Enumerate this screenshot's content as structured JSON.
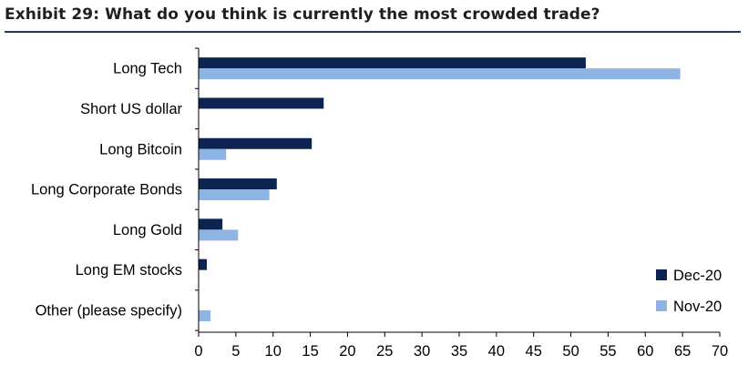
{
  "header": {
    "title": "Exhibit 29: What do you think is currently the most crowded trade?"
  },
  "chart_data": {
    "type": "bar",
    "orientation": "horizontal",
    "title": "Exhibit 29: What do you think is currently the most crowded trade?",
    "categories": [
      "Long Tech",
      "Short US dollar",
      "Long Bitcoin",
      "Long Corporate Bonds",
      "Long Gold",
      "Long EM stocks",
      "Other (please specify)"
    ],
    "series": [
      {
        "name": "Dec-20",
        "color": "#0d2350",
        "values": [
          52,
          16.8,
          15.2,
          10.5,
          3.2,
          1.1,
          0
        ]
      },
      {
        "name": "Nov-20",
        "color": "#8db4e2",
        "values": [
          64.7,
          0,
          3.7,
          9.5,
          5.3,
          0,
          1.6
        ]
      }
    ],
    "xlim": [
      0,
      70
    ],
    "xticks": [
      "0",
      "5",
      "10",
      "15",
      "20",
      "25",
      "30",
      "35",
      "40",
      "45",
      "50",
      "55",
      "60",
      "65",
      "70"
    ],
    "xlabel": "",
    "ylabel": "",
    "grid": false,
    "legend_position": "bottom-right"
  }
}
